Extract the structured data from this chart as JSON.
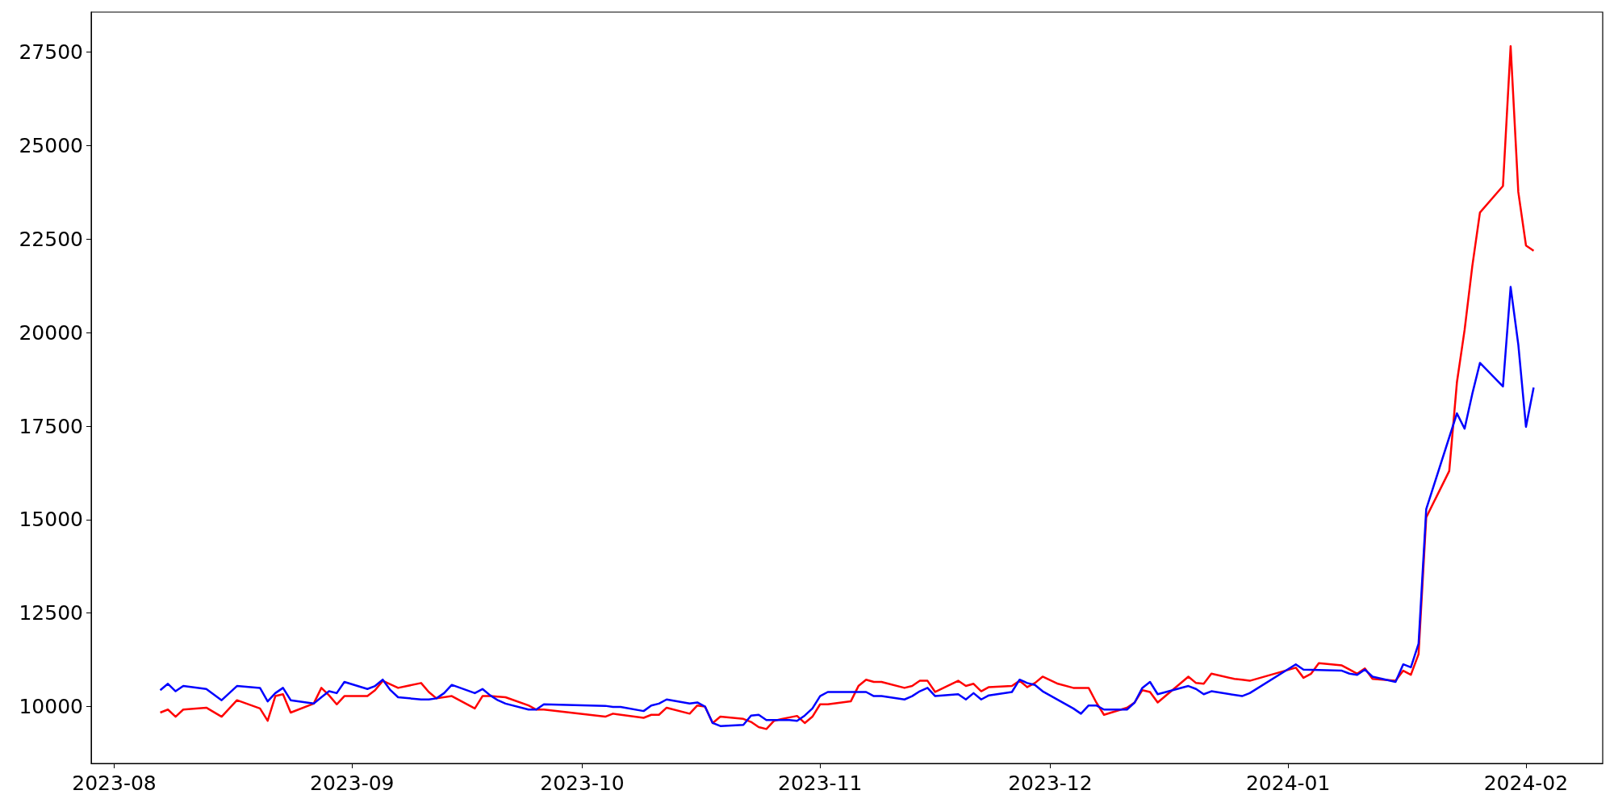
{
  "chart_data": {
    "type": "line",
    "marker": "none",
    "grid": false,
    "xlim": [
      "2023-07-29",
      "2024-02-11"
    ],
    "ylim": [
      8480,
      28570
    ],
    "xticks": [
      "2023-08",
      "2023-09",
      "2023-10",
      "2023-11",
      "2023-12",
      "2024-01",
      "2024-02"
    ],
    "yticks": [
      10000,
      12500,
      15000,
      17500,
      20000,
      22500,
      25000,
      27500
    ],
    "series": [
      {
        "color": "#ff0000",
        "x": [
          "2023-08-07",
          "2023-08-08",
          "2023-08-09",
          "2023-08-10",
          "2023-08-13",
          "2023-08-15",
          "2023-08-17",
          "2023-08-20",
          "2023-08-21",
          "2023-08-22",
          "2023-08-23",
          "2023-08-24",
          "2023-08-27",
          "2023-08-28",
          "2023-08-29",
          "2023-08-30",
          "2023-08-31",
          "2023-09-03",
          "2023-09-04",
          "2023-09-05",
          "2023-09-07",
          "2023-09-10",
          "2023-09-11",
          "2023-09-12",
          "2023-09-14",
          "2023-09-17",
          "2023-09-18",
          "2023-09-19",
          "2023-09-21",
          "2023-09-24",
          "2023-09-25",
          "2023-09-26",
          "2023-10-04",
          "2023-10-05",
          "2023-10-09",
          "2023-10-10",
          "2023-10-11",
          "2023-10-12",
          "2023-10-15",
          "2023-10-16",
          "2023-10-17",
          "2023-10-18",
          "2023-10-19",
          "2023-10-22",
          "2023-10-23",
          "2023-10-24",
          "2023-10-25",
          "2023-10-26",
          "2023-10-27",
          "2023-10-29",
          "2023-10-30",
          "2023-10-31",
          "2023-11-01",
          "2023-11-02",
          "2023-11-05",
          "2023-11-06",
          "2023-11-07",
          "2023-11-08",
          "2023-11-09",
          "2023-11-12",
          "2023-11-13",
          "2023-11-14",
          "2023-11-15",
          "2023-11-16",
          "2023-11-19",
          "2023-11-20",
          "2023-11-21",
          "2023-11-22",
          "2023-11-23",
          "2023-11-26",
          "2023-11-27",
          "2023-11-28",
          "2023-11-29",
          "2023-11-30",
          "2023-12-02",
          "2023-12-04",
          "2023-12-06",
          "2023-12-07",
          "2023-12-08",
          "2023-12-11",
          "2023-12-12",
          "2023-12-13",
          "2023-12-14",
          "2023-12-15",
          "2023-12-19",
          "2023-12-20",
          "2023-12-21",
          "2023-12-22",
          "2023-12-25",
          "2023-12-26",
          "2023-12-27",
          "2024-01-02",
          "2024-01-03",
          "2024-01-04",
          "2024-01-05",
          "2024-01-08",
          "2024-01-09",
          "2024-01-10",
          "2024-01-11",
          "2024-01-12",
          "2024-01-15",
          "2024-01-16",
          "2024-01-17",
          "2024-01-18",
          "2024-01-19",
          "2024-01-22",
          "2024-01-23",
          "2024-01-24",
          "2024-01-25",
          "2024-01-26",
          "2024-01-29",
          "2024-01-30",
          "2024-01-31",
          "2024-02-01",
          "2024-02-02"
        ],
        "values": [
          9840,
          9920,
          9730,
          9920,
          9970,
          9730,
          10170,
          9950,
          9620,
          10280,
          10330,
          9840,
          10080,
          10500,
          10300,
          10060,
          10280,
          10280,
          10440,
          10690,
          10500,
          10630,
          10390,
          10220,
          10280,
          9950,
          10280,
          10280,
          10250,
          10030,
          9920,
          9920,
          9730,
          9810,
          9700,
          9780,
          9780,
          9970,
          9810,
          10030,
          10000,
          9560,
          9730,
          9670,
          9590,
          9450,
          9400,
          9620,
          9670,
          9750,
          9560,
          9730,
          10060,
          10060,
          10140,
          10550,
          10720,
          10660,
          10660,
          10500,
          10550,
          10690,
          10690,
          10390,
          10690,
          10550,
          10610,
          10410,
          10520,
          10550,
          10690,
          10520,
          10630,
          10800,
          10610,
          10500,
          10500,
          10110,
          9780,
          9970,
          10110,
          10440,
          10390,
          10110,
          10800,
          10630,
          10610,
          10880,
          10740,
          10720,
          10690,
          11040,
          10770,
          10880,
          11160,
          11100,
          10990,
          10880,
          11020,
          10740,
          10690,
          10960,
          10850,
          11400,
          15060,
          16300,
          18670,
          20070,
          21770,
          23210,
          23920,
          27660,
          23760,
          22330,
          22190
        ]
      },
      {
        "color": "#0000ff",
        "x": [
          "2023-08-07",
          "2023-08-08",
          "2023-08-09",
          "2023-08-10",
          "2023-08-13",
          "2023-08-15",
          "2023-08-17",
          "2023-08-20",
          "2023-08-21",
          "2023-08-22",
          "2023-08-23",
          "2023-08-24",
          "2023-08-27",
          "2023-08-28",
          "2023-08-29",
          "2023-08-30",
          "2023-08-31",
          "2023-09-03",
          "2023-09-04",
          "2023-09-05",
          "2023-09-06",
          "2023-09-07",
          "2023-09-10",
          "2023-09-11",
          "2023-09-12",
          "2023-09-13",
          "2023-09-14",
          "2023-09-17",
          "2023-09-18",
          "2023-09-19",
          "2023-09-20",
          "2023-09-21",
          "2023-09-24",
          "2023-09-25",
          "2023-09-26",
          "2023-10-04",
          "2023-10-05",
          "2023-10-06",
          "2023-10-09",
          "2023-10-10",
          "2023-10-11",
          "2023-10-12",
          "2023-10-15",
          "2023-10-16",
          "2023-10-17",
          "2023-10-18",
          "2023-10-19",
          "2023-10-22",
          "2023-10-23",
          "2023-10-24",
          "2023-10-25",
          "2023-10-28",
          "2023-10-29",
          "2023-10-30",
          "2023-10-31",
          "2023-11-01",
          "2023-11-02",
          "2023-11-07",
          "2023-11-08",
          "2023-11-09",
          "2023-11-12",
          "2023-11-13",
          "2023-11-14",
          "2023-11-15",
          "2023-11-16",
          "2023-11-19",
          "2023-11-20",
          "2023-11-21",
          "2023-11-22",
          "2023-11-23",
          "2023-11-26",
          "2023-11-27",
          "2023-11-28",
          "2023-11-29",
          "2023-11-30",
          "2023-12-04",
          "2023-12-05",
          "2023-12-06",
          "2023-12-07",
          "2023-12-08",
          "2023-12-11",
          "2023-12-12",
          "2023-12-13",
          "2023-12-14",
          "2023-12-15",
          "2023-12-19",
          "2023-12-20",
          "2023-12-21",
          "2023-12-22",
          "2023-12-26",
          "2023-12-27",
          "2024-01-02",
          "2024-01-03",
          "2024-01-08",
          "2024-01-09",
          "2024-01-10",
          "2024-01-11",
          "2024-01-12",
          "2024-01-15",
          "2024-01-16",
          "2024-01-17",
          "2024-01-18",
          "2024-01-19",
          "2024-01-23",
          "2024-01-24",
          "2024-01-25",
          "2024-01-26",
          "2024-01-29",
          "2024-01-30",
          "2024-01-31",
          "2024-02-01",
          "2024-02-02"
        ],
        "values": [
          10440,
          10610,
          10410,
          10550,
          10470,
          10170,
          10550,
          10500,
          10140,
          10360,
          10500,
          10170,
          10080,
          10250,
          10410,
          10360,
          10660,
          10470,
          10550,
          10720,
          10440,
          10250,
          10190,
          10190,
          10220,
          10360,
          10580,
          10360,
          10470,
          10300,
          10170,
          10080,
          9920,
          9920,
          10060,
          10020,
          9990,
          9990,
          9880,
          10030,
          10080,
          10190,
          10080,
          10110,
          10000,
          9560,
          9480,
          9510,
          9760,
          9780,
          9640,
          9640,
          9620,
          9760,
          9950,
          10280,
          10390,
          10390,
          10280,
          10280,
          10190,
          10280,
          10410,
          10500,
          10280,
          10330,
          10190,
          10360,
          10190,
          10300,
          10390,
          10720,
          10630,
          10580,
          10410,
          9950,
          9810,
          10030,
          10030,
          9920,
          9920,
          10110,
          10500,
          10660,
          10330,
          10550,
          10470,
          10330,
          10410,
          10280,
          10360,
          11130,
          10990,
          10960,
          10880,
          10850,
          10990,
          10800,
          10660,
          11130,
          11050,
          11680,
          15280,
          17840,
          17430,
          18360,
          19190,
          18560,
          21220,
          19680,
          17480,
          18530
        ]
      }
    ]
  }
}
